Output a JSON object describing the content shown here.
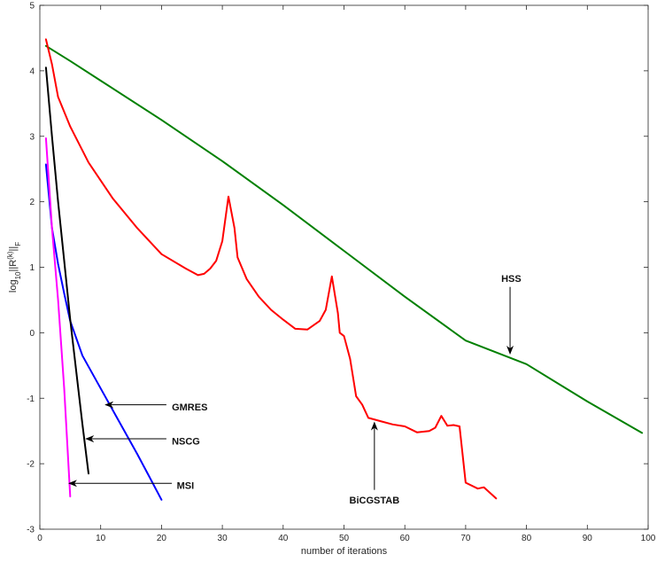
{
  "chart_data": {
    "type": "line",
    "xlabel": "number of iterations",
    "ylabel": "log10||R(k)||F",
    "ylabel_parts": {
      "prefix": "log",
      "sub1": "10",
      "mid": "||R",
      "sup": "(k)",
      "mid2": "||",
      "sub2": "F"
    },
    "xlim": [
      0,
      100
    ],
    "ylim": [
      -3,
      5
    ],
    "xticks": [
      0,
      10,
      20,
      30,
      40,
      50,
      60,
      70,
      80,
      90,
      100
    ],
    "yticks": [
      -3,
      -2,
      -1,
      0,
      1,
      2,
      3,
      4,
      5
    ],
    "grid": false,
    "series": [
      {
        "name": "HSS",
        "color": "#008000",
        "points": [
          [
            1,
            4.38
          ],
          [
            5,
            4.15
          ],
          [
            10,
            3.85
          ],
          [
            20,
            3.25
          ],
          [
            30,
            2.62
          ],
          [
            40,
            1.95
          ],
          [
            50,
            1.25
          ],
          [
            60,
            0.55
          ],
          [
            70,
            -0.12
          ],
          [
            80,
            -0.48
          ],
          [
            90,
            -1.05
          ],
          [
            99,
            -1.53
          ]
        ]
      },
      {
        "name": "BiCGSTAB",
        "color": "#ff0000",
        "points": [
          [
            1,
            4.48
          ],
          [
            2,
            4.1
          ],
          [
            3,
            3.6
          ],
          [
            5,
            3.15
          ],
          [
            8,
            2.6
          ],
          [
            12,
            2.05
          ],
          [
            16,
            1.6
          ],
          [
            20,
            1.2
          ],
          [
            24,
            0.98
          ],
          [
            26,
            0.88
          ],
          [
            27,
            0.9
          ],
          [
            28,
            0.98
          ],
          [
            29,
            1.1
          ],
          [
            30,
            1.4
          ],
          [
            31,
            2.08
          ],
          [
            32,
            1.6
          ],
          [
            32.5,
            1.15
          ],
          [
            34,
            0.82
          ],
          [
            36,
            0.55
          ],
          [
            38,
            0.35
          ],
          [
            40,
            0.2
          ],
          [
            42,
            0.06
          ],
          [
            44,
            0.05
          ],
          [
            46,
            0.18
          ],
          [
            47,
            0.35
          ],
          [
            48,
            0.86
          ],
          [
            49,
            0.3
          ],
          [
            49.3,
            0.0
          ],
          [
            50,
            -0.05
          ],
          [
            51,
            -0.4
          ],
          [
            52,
            -0.97
          ],
          [
            53,
            -1.1
          ],
          [
            54,
            -1.3
          ],
          [
            56,
            -1.35
          ],
          [
            58,
            -1.4
          ],
          [
            60,
            -1.43
          ],
          [
            62,
            -1.52
          ],
          [
            64,
            -1.5
          ],
          [
            65,
            -1.45
          ],
          [
            66,
            -1.27
          ],
          [
            67,
            -1.42
          ],
          [
            68,
            -1.41
          ],
          [
            69,
            -1.43
          ],
          [
            70,
            -2.29
          ],
          [
            72,
            -2.38
          ],
          [
            73,
            -2.36
          ],
          [
            75,
            -2.53
          ]
        ]
      },
      {
        "name": "GMRES",
        "color": "#0000ff",
        "points": [
          [
            1,
            2.57
          ],
          [
            2,
            1.6
          ],
          [
            3,
            1.05
          ],
          [
            4,
            0.6
          ],
          [
            5,
            0.18
          ],
          [
            7,
            -0.35
          ],
          [
            10,
            -0.85
          ],
          [
            13,
            -1.35
          ],
          [
            16,
            -1.85
          ],
          [
            18,
            -2.2
          ],
          [
            20,
            -2.55
          ]
        ]
      },
      {
        "name": "NSCG",
        "color": "#000000",
        "points": [
          [
            1,
            4.05
          ],
          [
            2,
            3.0
          ],
          [
            3,
            2.0
          ],
          [
            4,
            1.1
          ],
          [
            5,
            0.2
          ],
          [
            6,
            -0.6
          ],
          [
            7,
            -1.4
          ],
          [
            8,
            -2.15
          ]
        ]
      },
      {
        "name": "MSI",
        "color": "#ff00ff",
        "points": [
          [
            1,
            2.97
          ],
          [
            2,
            1.6
          ],
          [
            3,
            0.5
          ],
          [
            4,
            -0.85
          ],
          [
            5,
            -2.5
          ]
        ]
      }
    ],
    "annotations": [
      {
        "text": "HSS",
        "text_at": [
          77.5,
          0.83
        ],
        "arrow_from": [
          77.3,
          0.7
        ],
        "arrow_to": [
          77.3,
          -0.32
        ]
      },
      {
        "text": "BiCGSTAB",
        "text_at": [
          55,
          -2.55
        ],
        "arrow_from": [
          55,
          -2.4
        ],
        "arrow_to": [
          55,
          -1.37
        ]
      },
      {
        "text": "GMRES",
        "text_at": [
          21.7,
          -1.13
        ],
        "arrow_from": [
          20.8,
          -1.1
        ],
        "arrow_to": [
          10.8,
          -1.1
        ]
      },
      {
        "text": "NSCG",
        "text_at": [
          21.7,
          -1.65
        ],
        "arrow_from": [
          20.8,
          -1.62
        ],
        "arrow_to": [
          7.6,
          -1.62
        ]
      },
      {
        "text": "MSI",
        "text_at": [
          22.5,
          -2.33
        ],
        "arrow_from": [
          21.7,
          -2.3
        ],
        "arrow_to": [
          4.8,
          -2.3
        ]
      }
    ]
  }
}
